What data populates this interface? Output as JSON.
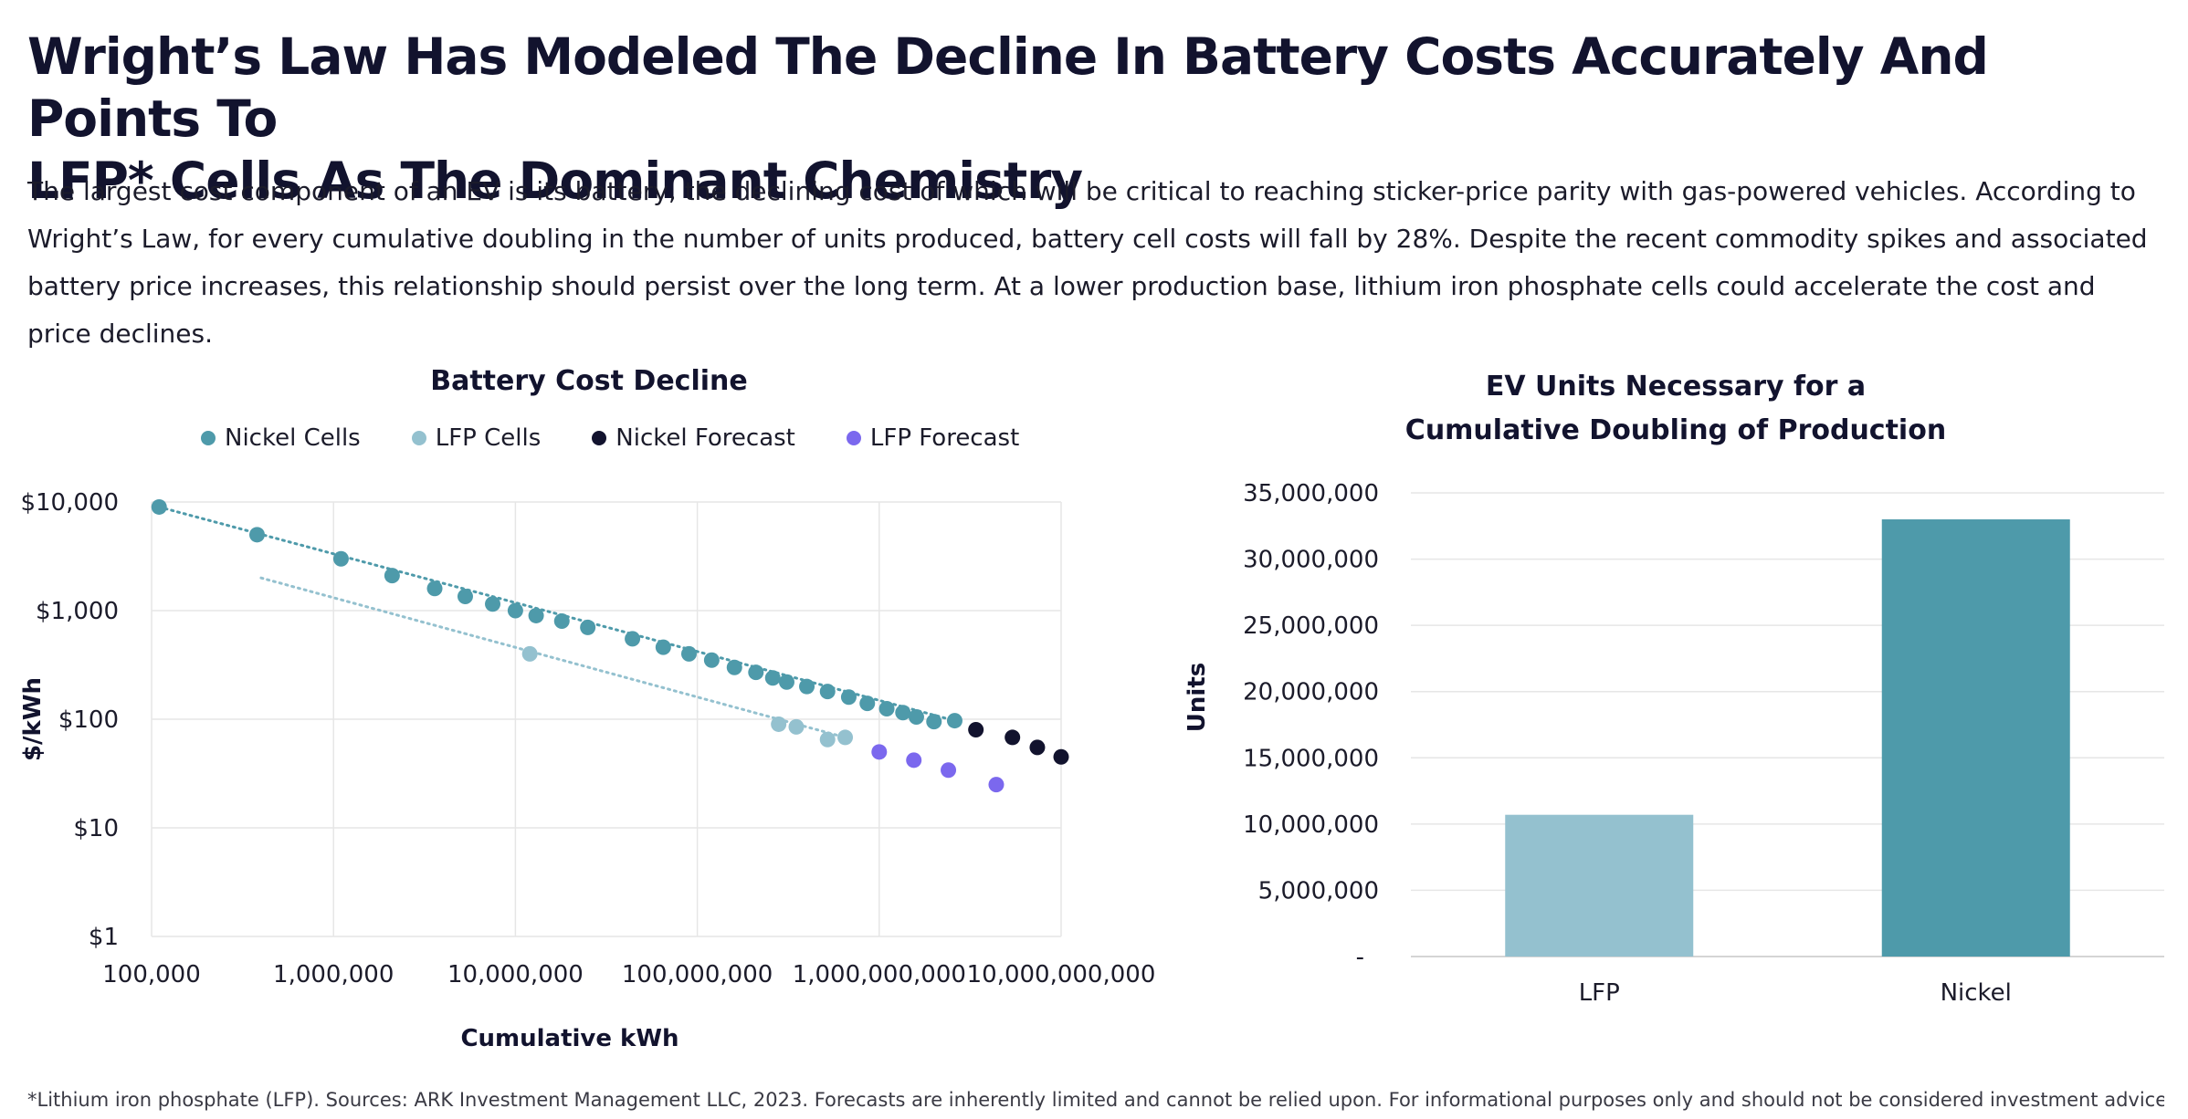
{
  "title_lines": [
    "Wright’s Law Has Modeled The Decline In Battery Costs Accurately And Points To",
    "LFP* Cells As The Dominant Chemistry"
  ],
  "description": "The largest cost component of an EV is its battery, the declining cost of which will be critical to reaching sticker-price parity with gas-powered vehicles. According to Wright’s Law, for every cumulative doubling in the number of units produced, battery cell costs will fall by 28%. Despite the recent commodity spikes and associated battery price increases, this relationship should persist over the long term. At a lower production base, lithium iron phosphate cells could accelerate the cost and price declines.",
  "footnote": "*Lithium iron phosphate (LFP). Sources: ARK Investment Management LLC, 2023. Forecasts are inherently limited and cannot be relied upon. For informational purposes only and should not be considered investment advice or a",
  "colors": {
    "nickel": "#4e9aaa",
    "lfp": "#94c1cf",
    "nickel_forecast": "#12132e",
    "lfp_forecast": "#7b68ee",
    "grid": "#e6e6e6",
    "text": "#12132e"
  },
  "chart_data": [
    {
      "type": "scatter",
      "title": "Battery Cost Decline",
      "xlabel": "Cumulative kWh",
      "ylabel": "$/kWh",
      "x_scale": "log",
      "y_scale": "log",
      "xlim": [
        100000,
        10000000000
      ],
      "ylim": [
        1,
        10000
      ],
      "x_ticks": [
        "100,000",
        "1,000,000",
        "10,000,000",
        "100,000,000",
        "1,000,000,000",
        "10,000,000,000"
      ],
      "y_ticks": [
        "$1",
        "$10",
        "$100",
        "$1,000",
        "$10,000"
      ],
      "legend_position": "top",
      "grid": true,
      "series": [
        {
          "name": "Nickel Cells",
          "color_key": "nickel",
          "trendline": true,
          "points": [
            [
              110000,
              9000
            ],
            [
              380000,
              5000
            ],
            [
              1100000,
              3000
            ],
            [
              2100000,
              2100
            ],
            [
              3600000,
              1600
            ],
            [
              5300000,
              1350
            ],
            [
              7500000,
              1150
            ],
            [
              10000000,
              1000
            ],
            [
              13000000,
              900
            ],
            [
              18000000,
              800
            ],
            [
              25000000,
              700
            ],
            [
              44000000,
              550
            ],
            [
              65000000,
              460
            ],
            [
              90000000,
              400
            ],
            [
              120000000,
              350
            ],
            [
              160000000,
              300
            ],
            [
              210000000,
              270
            ],
            [
              260000000,
              240
            ],
            [
              310000000,
              220
            ],
            [
              400000000,
              200
            ],
            [
              520000000,
              180
            ],
            [
              680000000,
              160
            ],
            [
              860000000,
              140
            ],
            [
              1100000000,
              125
            ],
            [
              1350000000,
              115
            ],
            [
              1600000000,
              105
            ],
            [
              2000000000,
              95
            ],
            [
              2600000000,
              97
            ]
          ]
        },
        {
          "name": "LFP Cells",
          "color_key": "lfp",
          "trendline": true,
          "points": [
            [
              12000000,
              400
            ],
            [
              280000000,
              90
            ],
            [
              350000000,
              85
            ],
            [
              520000000,
              65
            ],
            [
              650000000,
              68
            ]
          ]
        },
        {
          "name": "Nickel Forecast",
          "color_key": "nickel_forecast",
          "trendline": false,
          "points": [
            [
              3400000000,
              80
            ],
            [
              5400000000,
              68
            ],
            [
              7400000000,
              55
            ],
            [
              10000000000,
              45
            ]
          ]
        },
        {
          "name": "LFP Forecast",
          "color_key": "lfp_forecast",
          "trendline": false,
          "points": [
            [
              1000000000,
              50
            ],
            [
              1550000000,
              42
            ],
            [
              2400000000,
              34
            ],
            [
              4400000000,
              25
            ]
          ]
        }
      ],
      "lfp_trendline_start": [
        400000,
        2000
      ]
    },
    {
      "type": "bar",
      "title_lines": [
        "EV Units Necessary for a",
        "Cumulative Doubling of Production"
      ],
      "ylabel": "Units",
      "categories": [
        "LFP",
        "Nickel"
      ],
      "values": [
        10700000,
        33000000
      ],
      "bar_color_keys": [
        "lfp",
        "nickel"
      ],
      "ylim": [
        0,
        35000000
      ],
      "y_ticks": [
        "-",
        "5,000,000",
        "10,000,000",
        "15,000,000",
        "20,000,000",
        "25,000,000",
        "30,000,000",
        "35,000,000"
      ],
      "grid": true
    }
  ]
}
